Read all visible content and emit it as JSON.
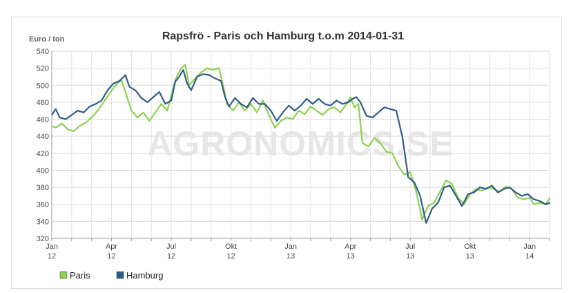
{
  "chart_data": {
    "type": "line",
    "title": "Rapsfrö - Paris och Hamburg t.o.m 2014-01-31",
    "ylabel": "Euro / ton",
    "watermark": "AGRONOMICS.SE",
    "ylim": [
      320,
      540
    ],
    "yticks": [
      320,
      340,
      360,
      380,
      400,
      420,
      440,
      460,
      480,
      500,
      520,
      540
    ],
    "xlim": [
      0,
      25.03
    ],
    "xticks": [
      {
        "m": 0,
        "line1": "Jan",
        "line2": "12"
      },
      {
        "m": 3,
        "line1": "Apr",
        "line2": "12"
      },
      {
        "m": 6,
        "line1": "Jul",
        "line2": "12"
      },
      {
        "m": 9,
        "line1": "Okt",
        "line2": "12"
      },
      {
        "m": 12,
        "line1": "Jan",
        "line2": "13"
      },
      {
        "m": 15,
        "line1": "Apr",
        "line2": "13"
      },
      {
        "m": 18,
        "line1": "Jul",
        "line2": "13"
      },
      {
        "m": 21,
        "line1": "Okt",
        "line2": "13"
      },
      {
        "m": 24,
        "line1": "Jan",
        "line2": "14"
      }
    ],
    "grid": true,
    "legend_position": "bottom-left",
    "series": [
      {
        "name": "Paris",
        "color": "#8cd14f",
        "points": [
          [
            0,
            452
          ],
          [
            0.2,
            450
          ],
          [
            0.5,
            455
          ],
          [
            0.8,
            448
          ],
          [
            1.1,
            446
          ],
          [
            1.4,
            452
          ],
          [
            1.7,
            456
          ],
          [
            2.0,
            462
          ],
          [
            2.3,
            470
          ],
          [
            2.6,
            480
          ],
          [
            2.9,
            490
          ],
          [
            3.2,
            500
          ],
          [
            3.5,
            506
          ],
          [
            3.7,
            492
          ],
          [
            4.0,
            470
          ],
          [
            4.3,
            462
          ],
          [
            4.6,
            468
          ],
          [
            4.9,
            458
          ],
          [
            5.2,
            468
          ],
          [
            5.5,
            478
          ],
          [
            5.8,
            470
          ],
          [
            6.0,
            488
          ],
          [
            6.2,
            506
          ],
          [
            6.5,
            520
          ],
          [
            6.7,
            524
          ],
          [
            6.9,
            500
          ],
          [
            7.2,
            508
          ],
          [
            7.5,
            515
          ],
          [
            7.8,
            520
          ],
          [
            8.1,
            518
          ],
          [
            8.4,
            520
          ],
          [
            8.6,
            500
          ],
          [
            8.8,
            478
          ],
          [
            9.1,
            470
          ],
          [
            9.4,
            480
          ],
          [
            9.7,
            470
          ],
          [
            10.0,
            478
          ],
          [
            10.3,
            468
          ],
          [
            10.6,
            482
          ],
          [
            10.9,
            465
          ],
          [
            11.2,
            450
          ],
          [
            11.5,
            458
          ],
          [
            11.8,
            462
          ],
          [
            12.1,
            460
          ],
          [
            12.4,
            470
          ],
          [
            12.7,
            466
          ],
          [
            13.0,
            475
          ],
          [
            13.3,
            470
          ],
          [
            13.6,
            465
          ],
          [
            13.9,
            472
          ],
          [
            14.2,
            474
          ],
          [
            14.5,
            468
          ],
          [
            14.8,
            478
          ],
          [
            15.0,
            486
          ],
          [
            15.2,
            474
          ],
          [
            15.4,
            478
          ],
          [
            15.6,
            432
          ],
          [
            15.9,
            428
          ],
          [
            16.2,
            438
          ],
          [
            16.5,
            432
          ],
          [
            16.8,
            422
          ],
          [
            17.1,
            420
          ],
          [
            17.4,
            405
          ],
          [
            17.7,
            395
          ],
          [
            18.0,
            398
          ],
          [
            18.3,
            375
          ],
          [
            18.6,
            342
          ],
          [
            18.9,
            358
          ],
          [
            19.2,
            362
          ],
          [
            19.5,
            375
          ],
          [
            19.8,
            388
          ],
          [
            20.1,
            384
          ],
          [
            20.4,
            368
          ],
          [
            20.7,
            360
          ],
          [
            21.0,
            372
          ],
          [
            21.3,
            378
          ],
          [
            21.6,
            376
          ],
          [
            21.9,
            380
          ],
          [
            22.2,
            378
          ],
          [
            22.5,
            375
          ],
          [
            22.8,
            381
          ],
          [
            23.1,
            378
          ],
          [
            23.4,
            368
          ],
          [
            23.7,
            366
          ],
          [
            24.0,
            368
          ],
          [
            24.2,
            360
          ],
          [
            24.5,
            362
          ],
          [
            24.8,
            360
          ],
          [
            25.03,
            368
          ]
        ]
      },
      {
        "name": "Hamburg",
        "color": "#2e5c8a",
        "points": [
          [
            0,
            465
          ],
          [
            0.2,
            472
          ],
          [
            0.4,
            462
          ],
          [
            0.7,
            460
          ],
          [
            1.0,
            465
          ],
          [
            1.3,
            470
          ],
          [
            1.6,
            468
          ],
          [
            1.9,
            475
          ],
          [
            2.2,
            478
          ],
          [
            2.5,
            482
          ],
          [
            2.8,
            494
          ],
          [
            3.1,
            502
          ],
          [
            3.4,
            505
          ],
          [
            3.7,
            512
          ],
          [
            3.9,
            498
          ],
          [
            4.2,
            494
          ],
          [
            4.5,
            485
          ],
          [
            4.8,
            480
          ],
          [
            5.1,
            486
          ],
          [
            5.4,
            492
          ],
          [
            5.7,
            478
          ],
          [
            6.0,
            482
          ],
          [
            6.2,
            504
          ],
          [
            6.4,
            510
          ],
          [
            6.6,
            518
          ],
          [
            6.8,
            502
          ],
          [
            7.0,
            494
          ],
          [
            7.3,
            510
          ],
          [
            7.6,
            513
          ],
          [
            7.9,
            512
          ],
          [
            8.2,
            508
          ],
          [
            8.5,
            505
          ],
          [
            8.7,
            486
          ],
          [
            8.9,
            475
          ],
          [
            9.2,
            485
          ],
          [
            9.5,
            478
          ],
          [
            9.8,
            474
          ],
          [
            10.1,
            485
          ],
          [
            10.4,
            478
          ],
          [
            10.7,
            478
          ],
          [
            11.0,
            470
          ],
          [
            11.3,
            458
          ],
          [
            11.6,
            468
          ],
          [
            11.9,
            476
          ],
          [
            12.2,
            470
          ],
          [
            12.5,
            476
          ],
          [
            12.8,
            484
          ],
          [
            13.1,
            478
          ],
          [
            13.4,
            484
          ],
          [
            13.7,
            478
          ],
          [
            14.0,
            476
          ],
          [
            14.3,
            482
          ],
          [
            14.6,
            478
          ],
          [
            14.9,
            480
          ],
          [
            15.1,
            484
          ],
          [
            15.3,
            486
          ],
          [
            15.5,
            480
          ],
          [
            15.8,
            464
          ],
          [
            16.1,
            462
          ],
          [
            16.4,
            468
          ],
          [
            16.7,
            474
          ],
          [
            17.0,
            472
          ],
          [
            17.3,
            470
          ],
          [
            17.6,
            440
          ],
          [
            17.9,
            392
          ],
          [
            18.2,
            386
          ],
          [
            18.5,
            370
          ],
          [
            18.8,
            338
          ],
          [
            19.1,
            355
          ],
          [
            19.4,
            362
          ],
          [
            19.7,
            380
          ],
          [
            20.0,
            382
          ],
          [
            20.3,
            370
          ],
          [
            20.6,
            358
          ],
          [
            20.9,
            372
          ],
          [
            21.2,
            374
          ],
          [
            21.5,
            380
          ],
          [
            21.8,
            378
          ],
          [
            22.1,
            382
          ],
          [
            22.4,
            374
          ],
          [
            22.7,
            378
          ],
          [
            23.0,
            380
          ],
          [
            23.3,
            374
          ],
          [
            23.6,
            370
          ],
          [
            23.9,
            372
          ],
          [
            24.2,
            366
          ],
          [
            24.5,
            364
          ],
          [
            24.8,
            360
          ],
          [
            25.03,
            362
          ]
        ]
      }
    ]
  }
}
